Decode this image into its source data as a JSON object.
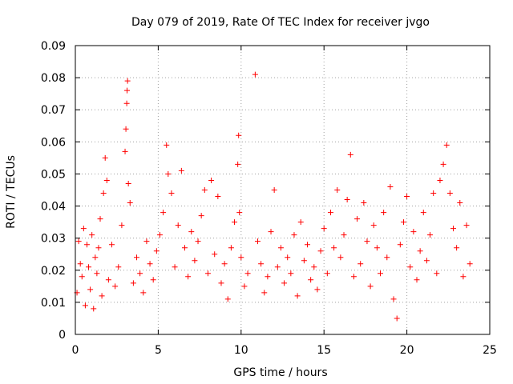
{
  "chart_data": {
    "type": "scatter",
    "title": "Day 079 of 2019, Rate Of TEC Index for receiver jvgo",
    "xlabel": "GPS time / hours",
    "ylabel": "ROTI / TECUs",
    "xlim": [
      0,
      25
    ],
    "ylim": [
      0,
      0.09
    ],
    "xticks": [
      "0",
      "5",
      "10",
      "15",
      "20",
      "25"
    ],
    "yticks": [
      "0",
      "0.01",
      "0.02",
      "0.03",
      "0.04",
      "0.05",
      "0.06",
      "0.07",
      "0.08",
      "0.09"
    ],
    "grid": true,
    "marker": "+",
    "color": "#ff0000",
    "series": [
      {
        "points": [
          [
            0.1,
            0.013
          ],
          [
            0.2,
            0.029
          ],
          [
            0.3,
            0.022
          ],
          [
            0.4,
            0.018
          ],
          [
            0.5,
            0.033
          ],
          [
            0.6,
            0.009
          ],
          [
            0.7,
            0.028
          ],
          [
            0.8,
            0.021
          ],
          [
            0.9,
            0.014
          ],
          [
            1.0,
            0.031
          ],
          [
            1.1,
            0.008
          ],
          [
            1.2,
            0.024
          ],
          [
            1.3,
            0.019
          ],
          [
            1.4,
            0.027
          ],
          [
            1.5,
            0.036
          ],
          [
            1.6,
            0.012
          ],
          [
            1.7,
            0.044
          ],
          [
            1.8,
            0.055
          ],
          [
            1.9,
            0.048
          ],
          [
            2.0,
            0.017
          ],
          [
            2.2,
            0.028
          ],
          [
            2.4,
            0.015
          ],
          [
            2.6,
            0.021
          ],
          [
            2.8,
            0.034
          ],
          [
            3.0,
            0.057
          ],
          [
            3.05,
            0.064
          ],
          [
            3.1,
            0.072
          ],
          [
            3.12,
            0.076
          ],
          [
            3.15,
            0.079
          ],
          [
            3.2,
            0.047
          ],
          [
            3.3,
            0.041
          ],
          [
            3.5,
            0.016
          ],
          [
            3.7,
            0.024
          ],
          [
            3.9,
            0.019
          ],
          [
            4.1,
            0.013
          ],
          [
            4.3,
            0.029
          ],
          [
            4.5,
            0.022
          ],
          [
            4.7,
            0.017
          ],
          [
            4.9,
            0.026
          ],
          [
            5.1,
            0.031
          ],
          [
            5.3,
            0.038
          ],
          [
            5.5,
            0.059
          ],
          [
            5.6,
            0.05
          ],
          [
            5.8,
            0.044
          ],
          [
            6.0,
            0.021
          ],
          [
            6.2,
            0.034
          ],
          [
            6.4,
            0.051
          ],
          [
            6.6,
            0.027
          ],
          [
            6.8,
            0.018
          ],
          [
            7.0,
            0.032
          ],
          [
            7.2,
            0.023
          ],
          [
            7.4,
            0.029
          ],
          [
            7.6,
            0.037
          ],
          [
            7.8,
            0.045
          ],
          [
            8.0,
            0.019
          ],
          [
            8.2,
            0.048
          ],
          [
            8.4,
            0.025
          ],
          [
            8.6,
            0.043
          ],
          [
            8.8,
            0.016
          ],
          [
            9.0,
            0.022
          ],
          [
            9.2,
            0.011
          ],
          [
            9.4,
            0.027
          ],
          [
            9.6,
            0.035
          ],
          [
            9.8,
            0.053
          ],
          [
            9.85,
            0.062
          ],
          [
            9.9,
            0.038
          ],
          [
            10.0,
            0.024
          ],
          [
            10.2,
            0.015
          ],
          [
            10.4,
            0.019
          ],
          [
            10.85,
            0.081
          ],
          [
            11.0,
            0.029
          ],
          [
            11.2,
            0.022
          ],
          [
            11.4,
            0.013
          ],
          [
            11.6,
            0.018
          ],
          [
            11.8,
            0.032
          ],
          [
            12.0,
            0.045
          ],
          [
            12.2,
            0.021
          ],
          [
            12.4,
            0.027
          ],
          [
            12.6,
            0.016
          ],
          [
            12.8,
            0.024
          ],
          [
            13.0,
            0.019
          ],
          [
            13.2,
            0.031
          ],
          [
            13.4,
            0.012
          ],
          [
            13.6,
            0.035
          ],
          [
            13.8,
            0.023
          ],
          [
            14.0,
            0.028
          ],
          [
            14.2,
            0.017
          ],
          [
            14.4,
            0.021
          ],
          [
            14.6,
            0.014
          ],
          [
            14.8,
            0.026
          ],
          [
            15.0,
            0.033
          ],
          [
            15.2,
            0.019
          ],
          [
            15.4,
            0.038
          ],
          [
            15.6,
            0.027
          ],
          [
            15.8,
            0.045
          ],
          [
            16.0,
            0.024
          ],
          [
            16.2,
            0.031
          ],
          [
            16.4,
            0.042
          ],
          [
            16.6,
            0.056
          ],
          [
            16.8,
            0.018
          ],
          [
            17.0,
            0.036
          ],
          [
            17.2,
            0.022
          ],
          [
            17.4,
            0.041
          ],
          [
            17.6,
            0.029
          ],
          [
            17.8,
            0.015
          ],
          [
            18.0,
            0.034
          ],
          [
            18.2,
            0.027
          ],
          [
            18.4,
            0.019
          ],
          [
            18.6,
            0.038
          ],
          [
            18.8,
            0.024
          ],
          [
            19.0,
            0.046
          ],
          [
            19.2,
            0.011
          ],
          [
            19.4,
            0.005
          ],
          [
            19.6,
            0.028
          ],
          [
            19.8,
            0.035
          ],
          [
            20.0,
            0.043
          ],
          [
            20.2,
            0.021
          ],
          [
            20.4,
            0.032
          ],
          [
            20.6,
            0.017
          ],
          [
            20.8,
            0.026
          ],
          [
            21.0,
            0.038
          ],
          [
            21.2,
            0.023
          ],
          [
            21.4,
            0.031
          ],
          [
            21.6,
            0.044
          ],
          [
            21.8,
            0.019
          ],
          [
            22.0,
            0.048
          ],
          [
            22.2,
            0.053
          ],
          [
            22.4,
            0.059
          ],
          [
            22.6,
            0.044
          ],
          [
            22.8,
            0.033
          ],
          [
            23.0,
            0.027
          ],
          [
            23.2,
            0.041
          ],
          [
            23.4,
            0.018
          ],
          [
            23.6,
            0.034
          ],
          [
            23.8,
            0.022
          ]
        ]
      }
    ]
  }
}
